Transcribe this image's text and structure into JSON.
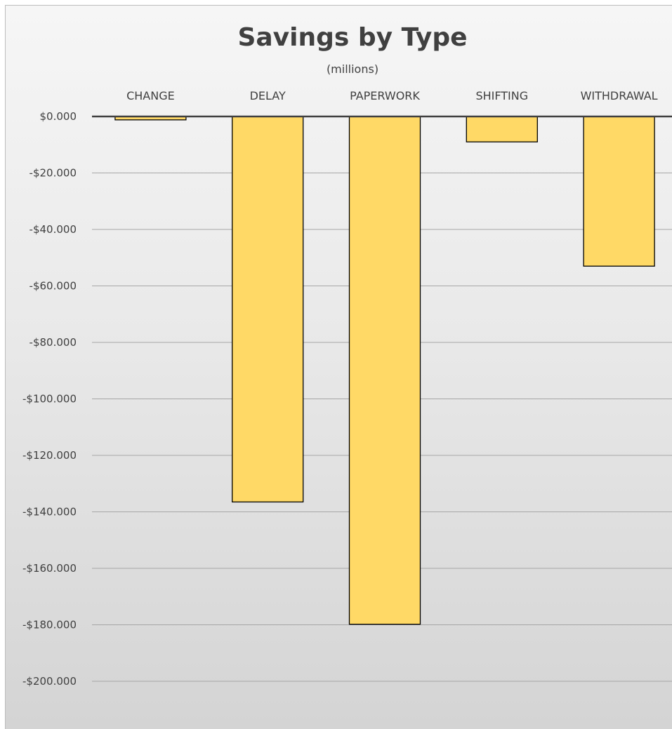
{
  "chart_data": {
    "type": "bar",
    "title": "Savings by Type",
    "subtitle": "(millions)",
    "categories": [
      "CHANGE",
      "DELAY",
      "PAPERWORK",
      "SHIFTING",
      "WITHDRAWAL"
    ],
    "values": [
      -1.2,
      -136.5,
      -179.8,
      -9.0,
      -53.0
    ],
    "ylim": [
      -200,
      0
    ],
    "yticks": [
      0,
      -20,
      -40,
      -60,
      -80,
      -100,
      -120,
      -140,
      -160,
      -180,
      -200
    ],
    "ytick_labels": [
      "$0.000",
      "-$20.000",
      "-$40.000",
      "-$60.000",
      "-$80.000",
      "-$100.000",
      "-$120.000",
      "-$140.000",
      "-$160.000",
      "-$180.000",
      "-$200.000"
    ],
    "grid": true,
    "legend": "none",
    "bar_color": "#ffd966",
    "bar_outline": "#000000",
    "gridline_color": "#a6a6a6",
    "axis_color": "#404040"
  }
}
